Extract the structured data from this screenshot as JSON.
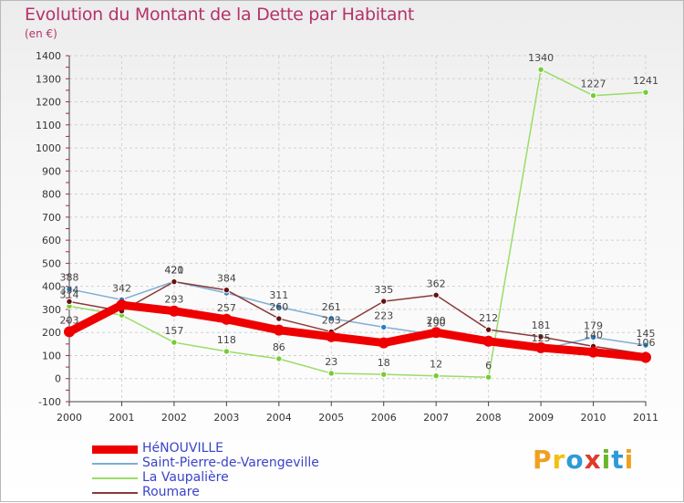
{
  "chart_data": {
    "type": "line",
    "title": "Evolution du Montant de la Dette par Habitant",
    "subtitle": "(en €)",
    "x": [
      "2000",
      "2001",
      "2002",
      "2003",
      "2004",
      "2005",
      "2006",
      "2007",
      "2008",
      "2009",
      "2010",
      "2011"
    ],
    "ylim": [
      -100,
      1400
    ],
    "yticks": [
      -100,
      0,
      100,
      200,
      300,
      400,
      500,
      600,
      700,
      800,
      900,
      1000,
      1100,
      1200,
      1300,
      1400
    ],
    "grid": true,
    "legend_position": "bottom-left",
    "series": [
      {
        "name": "HéNOUVILLE",
        "color": "#ee0000",
        "marker_color": "#ee0000",
        "values": [
          203,
          319,
          293,
          257,
          210,
          182,
          155,
          200,
          162,
          134,
          115,
          92
        ],
        "labels": [
          "203",
          "",
          "293",
          "257",
          "",
          "",
          "",
          "200",
          "",
          "",
          "",
          ""
        ]
      },
      {
        "name": "Saint-Pierre-de-Varengeville",
        "color": "#7faed4",
        "marker_color": "#2e7ebf",
        "values": [
          388,
          342,
          421,
          371,
          311,
          261,
          223,
          190,
          161,
          125,
          179,
          145
        ],
        "labels": [
          "388",
          "342",
          "421",
          "",
          "311",
          "261",
          "223",
          "190",
          "",
          "125",
          "179",
          "145"
        ]
      },
      {
        "name": "La Vaupalière",
        "color": "#99dd66",
        "marker_color": "#77cc33",
        "values": [
          314,
          275,
          157,
          118,
          86,
          23,
          18,
          12,
          6,
          1340,
          1227,
          1241
        ],
        "labels": [
          "314",
          "",
          "157",
          "118",
          "86",
          "23",
          "18",
          "12",
          "6",
          "1340",
          "1227",
          "1241"
        ]
      },
      {
        "name": "Roumare",
        "color": "#8a3a3a",
        "marker_color": "#661111",
        "values": [
          334,
          293,
          420,
          384,
          260,
          203,
          335,
          362,
          212,
          181,
          140,
          106
        ],
        "labels": [
          "334",
          "",
          "420",
          "384",
          "260",
          "203",
          "335",
          "362",
          "212",
          "181",
          "140",
          "106"
        ]
      }
    ],
    "watermark": "Proxiti"
  }
}
